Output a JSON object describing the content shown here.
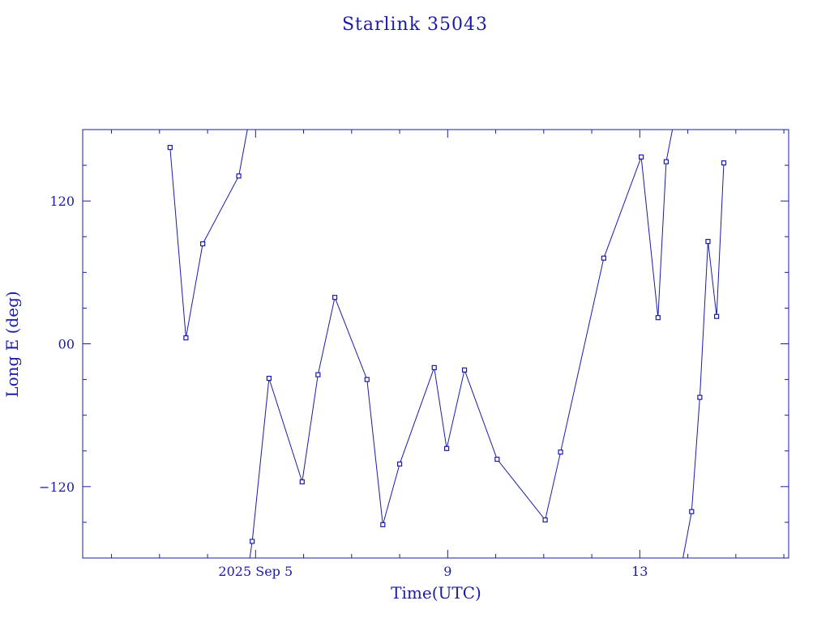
{
  "chart_data": {
    "type": "line",
    "title": "Starlink 35043",
    "xlabel": "Time(UTC)",
    "ylabel": "Long E (deg)",
    "x_unit": "2025 Sep, day of month (UTC)",
    "xlim": [
      1.4,
      16.1
    ],
    "ylim": [
      -180,
      180
    ],
    "x_ticks": [
      {
        "value": 5,
        "label": "2025 Sep  5"
      },
      {
        "value": 9,
        "label": "9"
      },
      {
        "value": 13,
        "label": "13"
      }
    ],
    "y_ticks": [
      {
        "value": 120,
        "label": "120"
      },
      {
        "value": 0,
        "label": "00"
      },
      {
        "value": -120,
        "label": "−120"
      }
    ],
    "grid": false,
    "color": "#1b1ba8",
    "series": [
      {
        "segments": [
          [
            {
              "x": 3.22,
              "y": 165,
              "marker": true
            },
            {
              "x": 3.55,
              "y": 5,
              "marker": true
            },
            {
              "x": 3.9,
              "y": 84,
              "marker": true
            },
            {
              "x": 4.65,
              "y": 141,
              "marker": true
            },
            {
              "x": 4.83,
              "y": 180,
              "marker": false
            }
          ],
          [
            {
              "x": 4.88,
              "y": -180,
              "marker": false
            },
            {
              "x": 4.93,
              "y": -166,
              "marker": true
            },
            {
              "x": 5.28,
              "y": -29,
              "marker": true
            },
            {
              "x": 5.97,
              "y": -116,
              "marker": true
            },
            {
              "x": 6.3,
              "y": -26,
              "marker": true
            },
            {
              "x": 6.65,
              "y": 39,
              "marker": true
            },
            {
              "x": 7.32,
              "y": -30,
              "marker": true
            },
            {
              "x": 7.65,
              "y": -152,
              "marker": true
            },
            {
              "x": 8.0,
              "y": -101,
              "marker": true
            },
            {
              "x": 8.72,
              "y": -20,
              "marker": true
            },
            {
              "x": 8.98,
              "y": -88,
              "marker": true
            },
            {
              "x": 9.35,
              "y": -22,
              "marker": true
            },
            {
              "x": 10.03,
              "y": -97,
              "marker": true
            },
            {
              "x": 11.03,
              "y": -148,
              "marker": true
            },
            {
              "x": 11.35,
              "y": -91,
              "marker": true
            },
            {
              "x": 12.25,
              "y": 72,
              "marker": true
            },
            {
              "x": 13.03,
              "y": 157,
              "marker": true
            },
            {
              "x": 13.38,
              "y": 22,
              "marker": true
            },
            {
              "x": 13.55,
              "y": 153,
              "marker": true
            },
            {
              "x": 13.68,
              "y": 180,
              "marker": false
            }
          ],
          [
            {
              "x": 13.9,
              "y": -180,
              "marker": false
            },
            {
              "x": 14.08,
              "y": -141,
              "marker": true
            },
            {
              "x": 14.25,
              "y": -45,
              "marker": true
            },
            {
              "x": 14.42,
              "y": 86,
              "marker": true
            },
            {
              "x": 14.6,
              "y": 23,
              "marker": true
            },
            {
              "x": 14.75,
              "y": 152,
              "marker": true
            }
          ]
        ]
      }
    ]
  }
}
